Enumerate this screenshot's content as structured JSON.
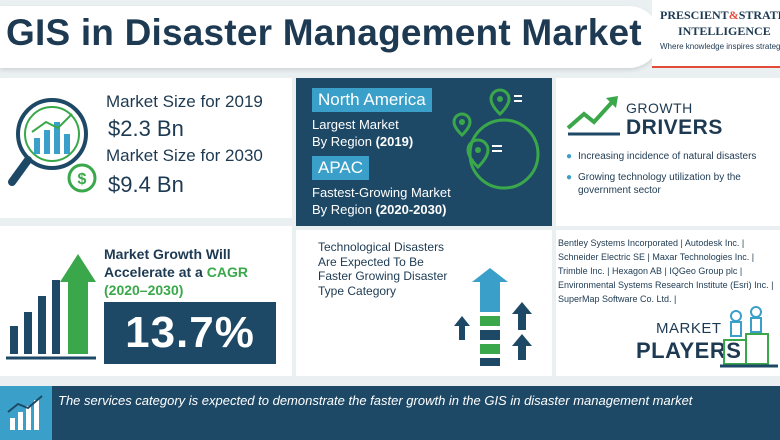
{
  "header": {
    "title": "GIS in Disaster Management Market",
    "logo_line1_a": "PRESCIENT",
    "logo_amp": "&",
    "logo_line1_b": "STRATEGIC",
    "logo_line2": "INTELLIGENCE",
    "logo_tagline": "Where knowledge inspires strategy"
  },
  "market_size": {
    "label_2019": "Market Size for 2019",
    "value_2019": "$2.3 Bn",
    "label_2030": "Market Size for 2030",
    "value_2030": "$9.4 Bn"
  },
  "regions": {
    "largest_name": "North America",
    "largest_desc1": "Largest Market",
    "largest_desc2_pre": "By Region ",
    "largest_desc2_year": "(2019)",
    "fastest_name": "APAC",
    "fastest_desc1": "Fastest-Growing Market",
    "fastest_desc2_pre": "By Region ",
    "fastest_desc2_year": "(2020-2030)"
  },
  "growth_drivers": {
    "title1": "GROWTH",
    "title2": "DRIVERS",
    "items": [
      "Increasing incidence of natural disasters",
      "Growing technology utilization by the government sector"
    ]
  },
  "cagr": {
    "line1": "Market Growth Will",
    "line2_pre": "Accelerate at a ",
    "line2_cagr": "CAGR",
    "line3": "(2020–2030)",
    "value": "13.7%"
  },
  "technological": {
    "line1": "Technological Disasters",
    "line2": "Are Expected To Be",
    "line3": "Faster Growing Disaster",
    "line4": "Type Category"
  },
  "players": {
    "lines": [
      "Bentley Systems Incorporated | Autodesk Inc. |",
      "Schneider Electric SE | Maxar Technologies Inc. |",
      "Trimble Inc. | Hexagon AB | IQGeo Group plc |",
      "Environmental Systems Research Institute (Esri) Inc. |",
      "SuperMap Software Co. Ltd. |"
    ],
    "title1": "MARKET",
    "title2": "PLAYERS"
  },
  "footer": {
    "text": "The services category is expected to demonstrate the faster growth in the GIS in disaster management market"
  },
  "colors": {
    "navy": "#1e4966",
    "blue": "#3aa0c9",
    "green": "#3aa84a",
    "red": "#e24a3b"
  }
}
